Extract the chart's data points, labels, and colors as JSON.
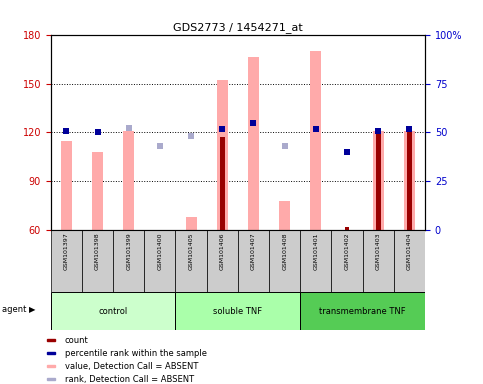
{
  "title": "GDS2773 / 1454271_at",
  "samples": [
    "GSM101397",
    "GSM101398",
    "GSM101399",
    "GSM101400",
    "GSM101405",
    "GSM101406",
    "GSM101407",
    "GSM101408",
    "GSM101401",
    "GSM101402",
    "GSM101403",
    "GSM101404"
  ],
  "pink_bars": [
    115,
    108,
    121,
    60,
    68,
    152,
    166,
    78,
    170,
    60,
    121,
    121
  ],
  "red_bars": [
    null,
    null,
    null,
    null,
    null,
    117,
    null,
    null,
    null,
    62,
    121,
    121
  ],
  "blue_squares": [
    121,
    120,
    null,
    null,
    null,
    122,
    126,
    null,
    122,
    108,
    121,
    122
  ],
  "lilac_squares": [
    null,
    null,
    123,
    112,
    118,
    null,
    null,
    112,
    null,
    null,
    null,
    null
  ],
  "ylim_left": [
    60,
    180
  ],
  "ylim_right": [
    0,
    100
  ],
  "yticks_left": [
    60,
    90,
    120,
    150,
    180
  ],
  "yticks_right": [
    0,
    25,
    50,
    75,
    100
  ],
  "ytick_labels_right": [
    "0",
    "25",
    "50",
    "75",
    "100%"
  ],
  "left_axis_color": "#cc0000",
  "right_axis_color": "#0000cc",
  "pink_color": "#ffaaaa",
  "red_color": "#990000",
  "blue_color": "#000099",
  "lilac_color": "#aaaacc",
  "group_spans": [
    [
      0,
      3,
      "control"
    ],
    [
      4,
      7,
      "soluble TNF"
    ],
    [
      8,
      11,
      "transmembrane TNF"
    ]
  ],
  "group_facecolors": [
    "#ccffcc",
    "#aaffaa",
    "#55cc55"
  ],
  "legend_items": [
    {
      "color": "#990000",
      "label": "count"
    },
    {
      "color": "#000099",
      "label": "percentile rank within the sample"
    },
    {
      "color": "#ffaaaa",
      "label": "value, Detection Call = ABSENT"
    },
    {
      "color": "#aaaacc",
      "label": "rank, Detection Call = ABSENT"
    }
  ]
}
